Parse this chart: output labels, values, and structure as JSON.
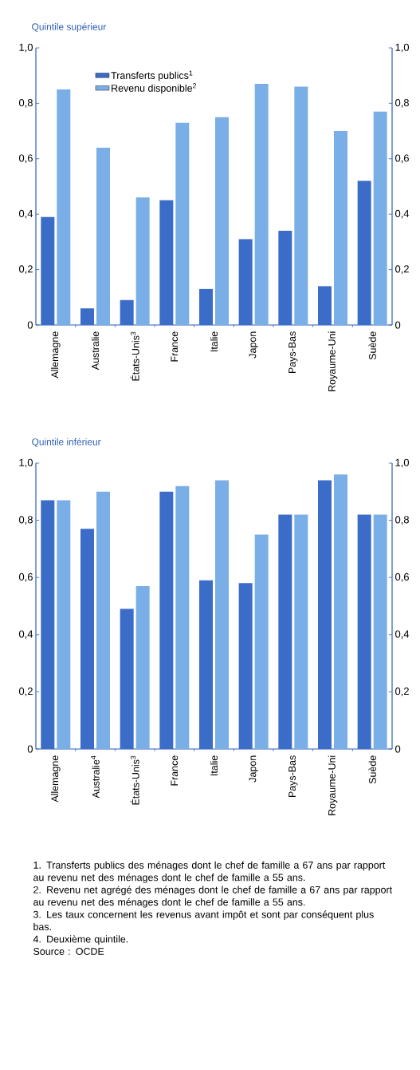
{
  "chart_data": [
    {
      "type": "bar",
      "title": "Quintile supérieur",
      "categories": [
        "Allemagne",
        "Australie",
        "États-Unis$^{3}$",
        "France",
        "Italie",
        "Japon",
        "Pays-Bas",
        "Royaume-Uni",
        "Suède"
      ],
      "series": [
        {
          "name": "Transferts publics$^{1}$",
          "color": "#3a6cc8",
          "values": [
            0.39,
            0.06,
            0.09,
            0.45,
            0.13,
            0.31,
            0.34,
            0.14,
            0.52
          ]
        },
        {
          "name": "Revenu disponible$^{2}$",
          "color": "#7aaee6",
          "values": [
            0.85,
            0.64,
            0.46,
            0.73,
            0.75,
            0.87,
            0.86,
            0.7,
            0.77
          ]
        }
      ],
      "ylim": [
        0,
        1
      ],
      "yticks": [
        0,
        {
          "value": 0.2,
          "label": "0,2"
        },
        {
          "value": 0.4,
          "label": "0,4"
        },
        {
          "value": 0.6,
          "label": "0,6"
        },
        {
          "value": 0.8,
          "label": "0,8"
        },
        {
          "value": 1,
          "label": "1,0"
        }
      ],
      "y2lim": [
        0,
        1
      ],
      "y2ticks": [
        0,
        {
          "value": 0.2,
          "label": "0,2"
        },
        {
          "value": 0.4,
          "label": "0,4"
        },
        {
          "value": 0.6,
          "label": "0,6"
        },
        {
          "value": 0.8,
          "label": "0,8"
        },
        {
          "value": 1,
          "label": "1,0"
        }
      ],
      "legend": "top left"
    },
    {
      "type": "bar",
      "title": "Quintile inférieur",
      "categories": [
        "Allemagne",
        "Australie$^{4}$",
        "États-Unis$^{3}$",
        "France",
        "Italie",
        "Japon",
        "Pays-Bas",
        "Royaume-Uni",
        "Suède"
      ],
      "series": [
        {
          "color": "#3a6cc8",
          "values": [
            0.87,
            0.77,
            0.49,
            0.9,
            0.59,
            0.58,
            0.82,
            0.94,
            0.82
          ]
        },
        {
          "color": "#7aaee6",
          "values": [
            0.87,
            0.9,
            0.57,
            0.92,
            0.94,
            0.75,
            0.82,
            0.96,
            0.82
          ]
        }
      ],
      "ylim": [
        0,
        1
      ],
      "yticks": [
        0,
        {
          "value": 0.2,
          "label": "0,2"
        },
        {
          "value": 0.4,
          "label": "0,4"
        },
        {
          "value": 0.6,
          "label": "0,6"
        },
        {
          "value": 0.8,
          "label": "0,8"
        },
        {
          "value": 1,
          "label": "1,0"
        }
      ],
      "y2lim": [
        0,
        1
      ],
      "y2ticks": [
        0,
        {
          "value": 0.2,
          "label": "0,2"
        },
        {
          "value": 0.4,
          "label": "0,4"
        },
        {
          "value": 0.6,
          "label": "0,6"
        },
        {
          "value": 0.8,
          "label": "0,8"
        },
        {
          "value": 1,
          "label": "1,0"
        }
      ],
      "legend": false,
      "annotations": [
        "1. Transferts publics des ménages dont le chef de famille a 67 ans par rapport au revenu net des ménages dont le chef de famille a 55 ans.",
        "2. Revenu net agrégé des ménages dont le chef de famille a 67 ans par rapport au revenu net des ménages dont le chef de famille a 55 ans.",
        "3. Les taux concernent les revenus avant impôt et sont par conséquent plus bas.",
        "4. Deuxième quintile.",
        "Source : OCDE"
      ]
    }
  ]
}
